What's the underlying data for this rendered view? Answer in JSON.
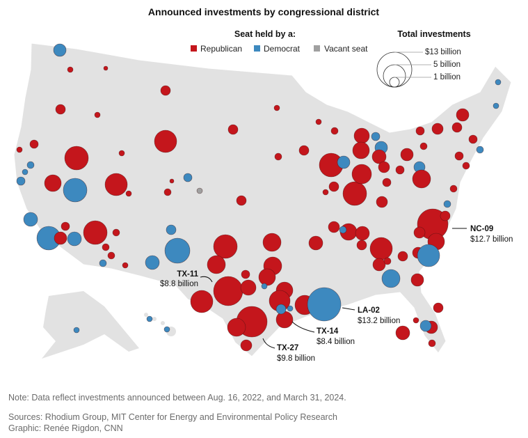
{
  "title": "Announced investments by congressional district",
  "legend": {
    "party_title": "Seat held by a:",
    "parties": [
      {
        "label": "Republican",
        "color": "#c4161c"
      },
      {
        "label": "Democrat",
        "color": "#3d89bf"
      },
      {
        "label": "Vacant seat",
        "color": "#a0a0a0"
      }
    ],
    "size_title": "Total investments",
    "sizes": [
      {
        "label": "$13 billion",
        "value": 13
      },
      {
        "label": "5 billion",
        "value": 5
      },
      {
        "label": "1 billion",
        "value": 1
      }
    ]
  },
  "annotations": [
    {
      "district": "NC-09",
      "amount": "$12.7 billion",
      "value": 12.7,
      "party": "Republican"
    },
    {
      "district": "TX-11",
      "amount": "$8.8 billion",
      "value": 8.8,
      "party": "Republican"
    },
    {
      "district": "LA-02",
      "amount": "$13.2 billion",
      "value": 13.2,
      "party": "Democrat"
    },
    {
      "district": "TX-14",
      "amount": "$8.4 billion",
      "value": 8.4,
      "party": "Republican"
    },
    {
      "district": "TX-27",
      "amount": "$9.8 billion",
      "value": 9.8,
      "party": "Republican"
    }
  ],
  "footer": {
    "note": "Note: Data reflect investments announced between Aug. 16, 2022, and March 31, 2024.",
    "sources": "Sources: Rhodium Group, MIT Center for Energy and Environmental Policy Research",
    "credit": "Graphic: Renée Rigdon, CNN"
  }
}
